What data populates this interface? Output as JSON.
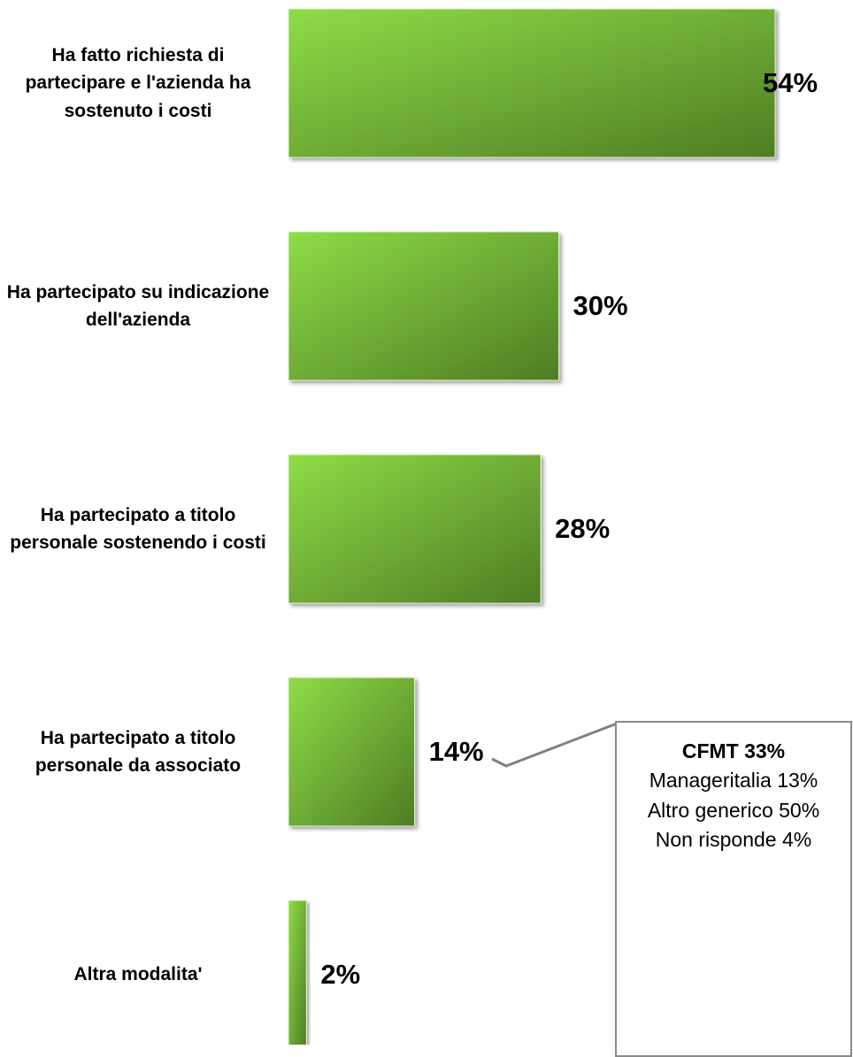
{
  "chart_data": {
    "type": "bar",
    "orientation": "horizontal",
    "categories": [
      "Ha fatto richiesta di partecipare e l'azienda ha sostenuto i costi",
      "Ha partecipato su indicazione dell'azienda",
      "Ha partecipato a titolo personale sostenendo i costi",
      "Ha partecipato a titolo personale da associato",
      "Altra modalita'"
    ],
    "values": [
      54,
      30,
      28,
      14,
      2
    ],
    "value_labels": [
      "54%",
      "30%",
      "28%",
      "14%",
      "2%"
    ],
    "color": [
      "#8fdc47",
      "#4d7d24"
    ],
    "annotation": {
      "title": "CFMT 33%",
      "lines": [
        "Manageritalia 13%",
        "Altro generico 50%",
        "Non risponde 4%"
      ]
    }
  }
}
